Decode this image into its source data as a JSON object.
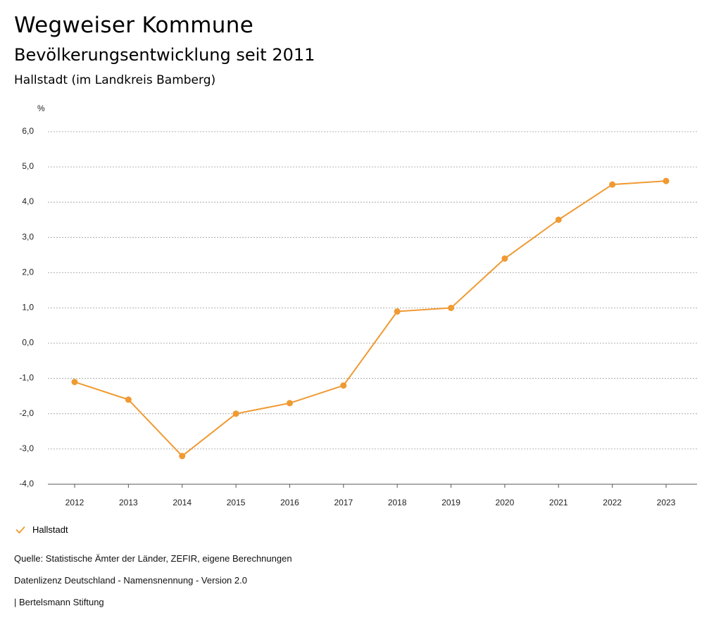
{
  "header": {
    "title": "Wegweiser Kommune",
    "subtitle": "Bevölkerungsentwicklung seit 2011",
    "region": "Hallstadt (im Landkreis Bamberg)"
  },
  "chart_data": {
    "type": "line",
    "ylabel": "%",
    "xlabel": "",
    "ylim": [
      -4.0,
      6.0
    ],
    "yticks": [
      "6,0",
      "5,0",
      "4,0",
      "3,0",
      "2,0",
      "1,0",
      "0,0",
      "-1,0",
      "-2,0",
      "-3,0",
      "-4,0"
    ],
    "categories": [
      "2012",
      "2013",
      "2014",
      "2015",
      "2016",
      "2017",
      "2018",
      "2019",
      "2020",
      "2021",
      "2022",
      "2023"
    ],
    "series": [
      {
        "name": "Hallstadt",
        "color": "#ef9a32",
        "values": [
          -1.1,
          -1.6,
          -3.2,
          -2.0,
          -1.7,
          -1.2,
          0.9,
          1.0,
          2.4,
          3.5,
          4.5,
          4.6
        ]
      }
    ],
    "grid": true,
    "legend_position": "bottom-left"
  },
  "legend": {
    "label": "Hallstadt",
    "icon": "check-icon",
    "color": "#ef9a32"
  },
  "footer": {
    "source": "Quelle: Statistische Ämter der Länder, ZEFIR, eigene Berechnungen",
    "license": "Datenlizenz Deutschland - Namensnennung - Version 2.0",
    "credit": "| Bertelsmann Stiftung"
  }
}
